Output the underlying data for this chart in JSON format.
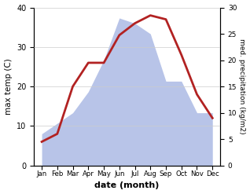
{
  "months": [
    "Jan",
    "Feb",
    "Mar",
    "Apr",
    "May",
    "Jun",
    "Jul",
    "Aug",
    "Sep",
    "Oct",
    "Nov",
    "Dec"
  ],
  "temp": [
    6,
    8,
    20,
    26,
    26,
    33,
    36,
    38,
    37,
    28,
    18,
    12
  ],
  "precip": [
    6,
    8,
    10,
    14,
    20,
    28,
    27,
    25,
    16,
    16,
    10,
    10
  ],
  "temp_color": "#b22222",
  "precip_fill_color": "#b8c4e8",
  "ylim_temp": [
    0,
    40
  ],
  "ylim_precip": [
    0,
    30
  ],
  "xlabel": "date (month)",
  "ylabel_left": "max temp (C)",
  "ylabel_right": "med. precipitation (kg/m2)",
  "temp_linewidth": 2.0,
  "background_color": "#ffffff"
}
